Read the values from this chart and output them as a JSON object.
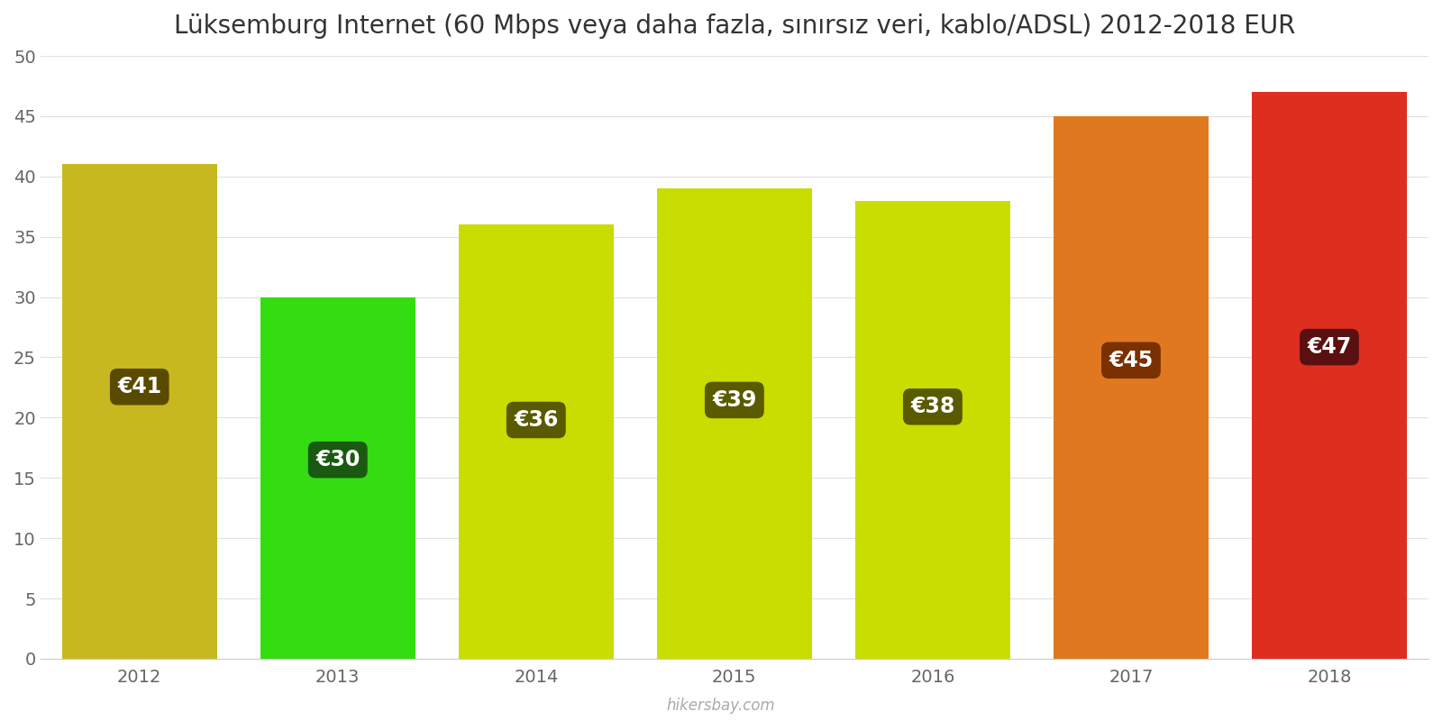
{
  "title": "Lüksemburg Internet (60 Mbps veya daha fazla, sınırsız veri, kablo/ADSL) 2012-2018 EUR",
  "years": [
    2012,
    2013,
    2014,
    2015,
    2016,
    2017,
    2018
  ],
  "values": [
    41,
    30,
    36,
    39,
    38,
    45,
    47
  ],
  "bar_colors": [
    "#c8b820",
    "#33dd11",
    "#c8dd00",
    "#c8dd00",
    "#c8dd00",
    "#e07820",
    "#dd2e20"
  ],
  "label_bg_colors": [
    "#5a4a00",
    "#1a5a10",
    "#5a5a00",
    "#5a5a00",
    "#5a5a00",
    "#7a3000",
    "#5a1010"
  ],
  "ylim": [
    0,
    50
  ],
  "yticks": [
    0,
    5,
    10,
    15,
    20,
    25,
    30,
    35,
    40,
    45,
    50
  ],
  "watermark": "hikersbay.com",
  "title_fontsize": 20,
  "label_fontsize": 17,
  "tick_fontsize": 14,
  "bar_width": 0.78
}
